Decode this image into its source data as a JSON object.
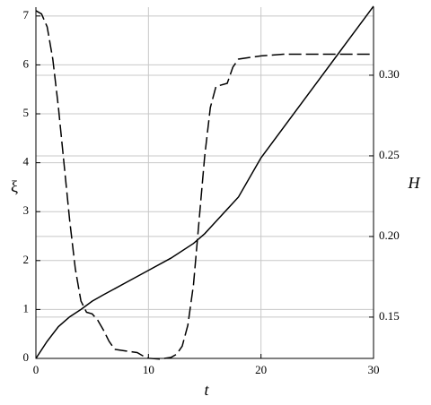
{
  "chart_data": {
    "type": "line",
    "x_label": "t",
    "y_label": "ξ",
    "y2_label": "H",
    "xlim": [
      0,
      30
    ],
    "xticks": [
      0,
      10,
      20,
      30
    ],
    "ylim": [
      0,
      7.18
    ],
    "yticks": [
      0,
      1,
      2,
      3,
      4,
      5,
      6,
      7
    ],
    "y2lim": [
      0.1244,
      0.3422
    ],
    "y2ticks": [
      0.15,
      {
        "value": 0.2,
        "label": "0.20"
      },
      0.25,
      {
        "value": 0.3,
        "label": "0.30"
      }
    ],
    "grid": true,
    "series": [
      {
        "color": "#000000",
        "dash": false,
        "x": [
          0,
          1,
          2,
          3,
          4,
          5,
          6,
          8,
          10,
          12,
          14,
          15,
          16,
          18,
          20,
          25,
          30
        ],
        "values": [
          0,
          0.35,
          0.65,
          0.85,
          1.0,
          1.17,
          1.3,
          1.55,
          1.8,
          2.05,
          2.35,
          2.55,
          2.8,
          3.3,
          4.1,
          5.65,
          7.2
        ]
      },
      {
        "color": "#000000",
        "dash": true,
        "axis": "y2",
        "x": [
          0,
          0.5,
          1,
          1.5,
          2,
          2.5,
          3,
          3.5,
          4,
          4.5,
          5,
          5.5,
          6,
          6.5,
          7,
          8,
          9,
          9.5,
          10,
          11,
          12,
          12.5,
          13,
          13.5,
          14,
          14.5,
          15,
          15.5,
          16,
          17,
          17.5,
          18,
          20,
          22,
          30
        ],
        "values": [
          0.34,
          0.338,
          0.33,
          0.31,
          0.28,
          0.245,
          0.21,
          0.18,
          0.16,
          0.153,
          0.152,
          0.148,
          0.142,
          0.135,
          0.13,
          0.129,
          0.128,
          0.126,
          0.1245,
          0.124,
          0.125,
          0.127,
          0.132,
          0.145,
          0.17,
          0.21,
          0.25,
          0.28,
          0.293,
          0.295,
          0.305,
          0.31,
          0.312,
          0.313,
          0.313
        ]
      }
    ]
  }
}
